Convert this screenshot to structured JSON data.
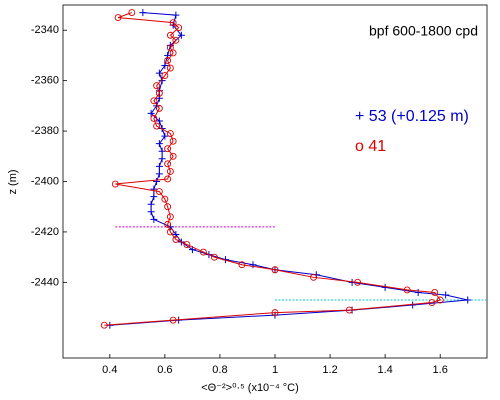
{
  "chart_data": {
    "type": "line",
    "xlabel": "<Θ⁻²>⁰·⁵ (x10⁻⁴ °C)",
    "ylabel": "z (m)",
    "annotations": [
      "bpf 600-1800 cpd"
    ],
    "xlim": [
      0.23,
      1.77
    ],
    "ylim": [
      -2470,
      -2330
    ],
    "xticks": [
      0.4,
      0.6,
      0.8,
      1,
      1.2,
      1.4,
      1.6
    ],
    "yticks": [
      -2440,
      -2420,
      -2400,
      -2380,
      -2360,
      -2340
    ],
    "hlines": [
      {
        "y": -2418,
        "x": [
          0.42,
          1.0
        ],
        "color": "#cc00cc"
      },
      {
        "y": -2447,
        "x": [
          1.0,
          1.77
        ],
        "color": "#00cccc"
      }
    ],
    "series": [
      {
        "name": "+ 53 (+0.125 m)",
        "color": "#0000cc",
        "marker": "plus",
        "x": [
          0.52,
          0.64,
          0.63,
          0.66,
          0.62,
          0.61,
          0.6,
          0.58,
          0.59,
          0.58,
          0.58,
          0.57,
          0.55,
          0.58,
          0.59,
          0.6,
          0.58,
          0.59,
          0.59,
          0.58,
          0.58,
          0.57,
          0.56,
          0.56,
          0.55,
          0.55,
          0.56,
          0.62,
          0.64,
          0.66,
          0.7,
          0.76,
          0.82,
          0.92,
          1.0,
          1.15,
          1.28,
          1.4,
          1.52,
          1.62,
          1.7,
          1.5,
          1.28,
          1.0,
          0.65,
          0.4
        ],
        "values": [
          -2333,
          -2334,
          -2338,
          -2342,
          -2346,
          -2350,
          -2354,
          -2357,
          -2360,
          -2364,
          -2367,
          -2370,
          -2373,
          -2376,
          -2379,
          -2382,
          -2385,
          -2388,
          -2391,
          -2394,
          -2397,
          -2400,
          -2403,
          -2406,
          -2409,
          -2412,
          -2415,
          -2418,
          -2421,
          -2424,
          -2427,
          -2429,
          -2431,
          -2433,
          -2435,
          -2437,
          -2440,
          -2442,
          -2444,
          -2445,
          -2447,
          -2449,
          -2451,
          -2453,
          -2455,
          -2457
        ]
      },
      {
        "name": "o 41",
        "color": "#dd0000",
        "marker": "circle",
        "x": [
          0.48,
          0.43,
          0.63,
          0.65,
          0.62,
          0.64,
          0.62,
          0.63,
          0.61,
          0.62,
          0.6,
          0.57,
          0.58,
          0.56,
          0.58,
          0.56,
          0.57,
          0.62,
          0.63,
          0.61,
          0.63,
          0.61,
          0.62,
          0.61,
          0.42,
          0.58,
          0.6,
          0.61,
          0.62,
          0.61,
          0.62,
          0.64,
          0.68,
          0.74,
          0.78,
          0.88,
          1.0,
          1.14,
          1.3,
          1.48,
          1.58,
          1.6,
          1.57,
          1.27,
          1.0,
          0.63,
          0.38
        ],
        "values": [
          -2333,
          -2335,
          -2337,
          -2339,
          -2342,
          -2344,
          -2347,
          -2349,
          -2352,
          -2355,
          -2358,
          -2362,
          -2365,
          -2368,
          -2371,
          -2375,
          -2378,
          -2381,
          -2384,
          -2387,
          -2390,
          -2393,
          -2396,
          -2399,
          -2401,
          -2404,
          -2407,
          -2410,
          -2414,
          -2417,
          -2420,
          -2423,
          -2425,
          -2428,
          -2430,
          -2433,
          -2435,
          -2438,
          -2440,
          -2443,
          -2444,
          -2447,
          -2448,
          -2451,
          -2452,
          -2455,
          -2457
        ]
      }
    ]
  }
}
